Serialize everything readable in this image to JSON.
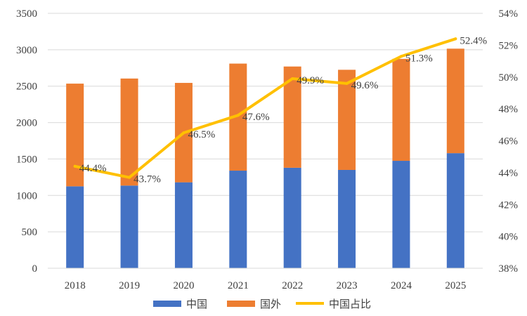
{
  "chart_data": {
    "type": "bar",
    "stacked": true,
    "categories": [
      "2018",
      "2019",
      "2020",
      "2021",
      "2022",
      "2023",
      "2024",
      "2025"
    ],
    "series": [
      {
        "name": "中国",
        "type": "bar",
        "axis": "left",
        "color": "#4472C4",
        "values": [
          1125,
          1135,
          1180,
          1340,
          1380,
          1350,
          1475,
          1580
        ]
      },
      {
        "name": "国外",
        "type": "bar",
        "axis": "left",
        "color": "#ED7D31",
        "values": [
          1410,
          1470,
          1365,
          1470,
          1390,
          1375,
          1400,
          1435
        ]
      },
      {
        "name": "中国占比",
        "type": "line",
        "axis": "right",
        "color": "#FFC000",
        "values": [
          44.4,
          43.7,
          46.5,
          47.6,
          49.9,
          49.6,
          51.3,
          52.4
        ],
        "labels": [
          "44.4%",
          "43.7%",
          "46.5%",
          "47.6%",
          "49.9%",
          "49.6%",
          "51.3%",
          "52.4%"
        ]
      }
    ],
    "left_axis": {
      "min": 0,
      "max": 3500,
      "step": 500,
      "ticks": [
        "0",
        "500",
        "1000",
        "1500",
        "2000",
        "2500",
        "3000",
        "3500"
      ]
    },
    "right_axis": {
      "min": 38,
      "max": 54,
      "step": 2,
      "ticks": [
        "38%",
        "40%",
        "42%",
        "44%",
        "46%",
        "48%",
        "50%",
        "52%",
        "54%"
      ]
    },
    "grid": true,
    "legend": {
      "position": "bottom",
      "items": [
        "中国",
        "国外",
        "中国占比"
      ]
    }
  }
}
